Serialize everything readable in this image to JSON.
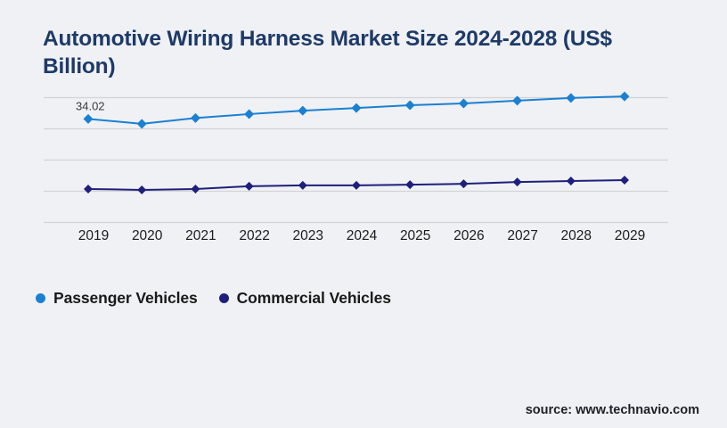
{
  "title": {
    "lines": [
      "Automotive Wiring Harness Market Size 2024-2028 (US$",
      "Billion)"
    ]
  },
  "chart_data": {
    "type": "line",
    "title": "Automotive Wiring Harness Market Size 2024-2028 (US$ Billion)",
    "categories": [
      "2019",
      "2020",
      "2021",
      "2022",
      "2023",
      "2024",
      "2025",
      "2026",
      "2027",
      "2028",
      "2029"
    ],
    "series": [
      {
        "name": "Passenger Vehicles",
        "color": "#1b80d2",
        "marker": "diamond",
        "values": [
          34.02,
          32.4,
          34.3,
          35.6,
          36.7,
          37.6,
          38.5,
          39.1,
          40.0,
          40.9,
          41.4
        ]
      },
      {
        "name": "Commercial Vehicles",
        "color": "#1f1f7c",
        "marker": "diamond",
        "values": [
          11.0,
          10.7,
          11.0,
          11.9,
          12.2,
          12.2,
          12.4,
          12.7,
          13.3,
          13.6,
          13.9
        ]
      }
    ],
    "annotations": [
      {
        "series": "Passenger Vehicles",
        "category": "2019",
        "text": "34.02"
      }
    ],
    "xlabel": "",
    "ylabel": "",
    "ylim": [
      0,
      41
    ],
    "y_axis_labels_visible": false,
    "gridlines": {
      "horizontal_count": 5,
      "color": "#d4d4d6"
    },
    "legend_position": "bottom-left"
  },
  "legend": {
    "items": [
      {
        "label": "Passenger Vehicles",
        "color": "#1b80d2"
      },
      {
        "label": "Commercial Vehicles",
        "color": "#1f1f7c"
      }
    ]
  },
  "footer": {
    "source_text": "source: www.technavio.com"
  },
  "colors": {
    "background": "#f0f1f4",
    "title": "#1d3a68",
    "axis_label": "#1c1c1c",
    "annotation": "#3a3a3a"
  }
}
